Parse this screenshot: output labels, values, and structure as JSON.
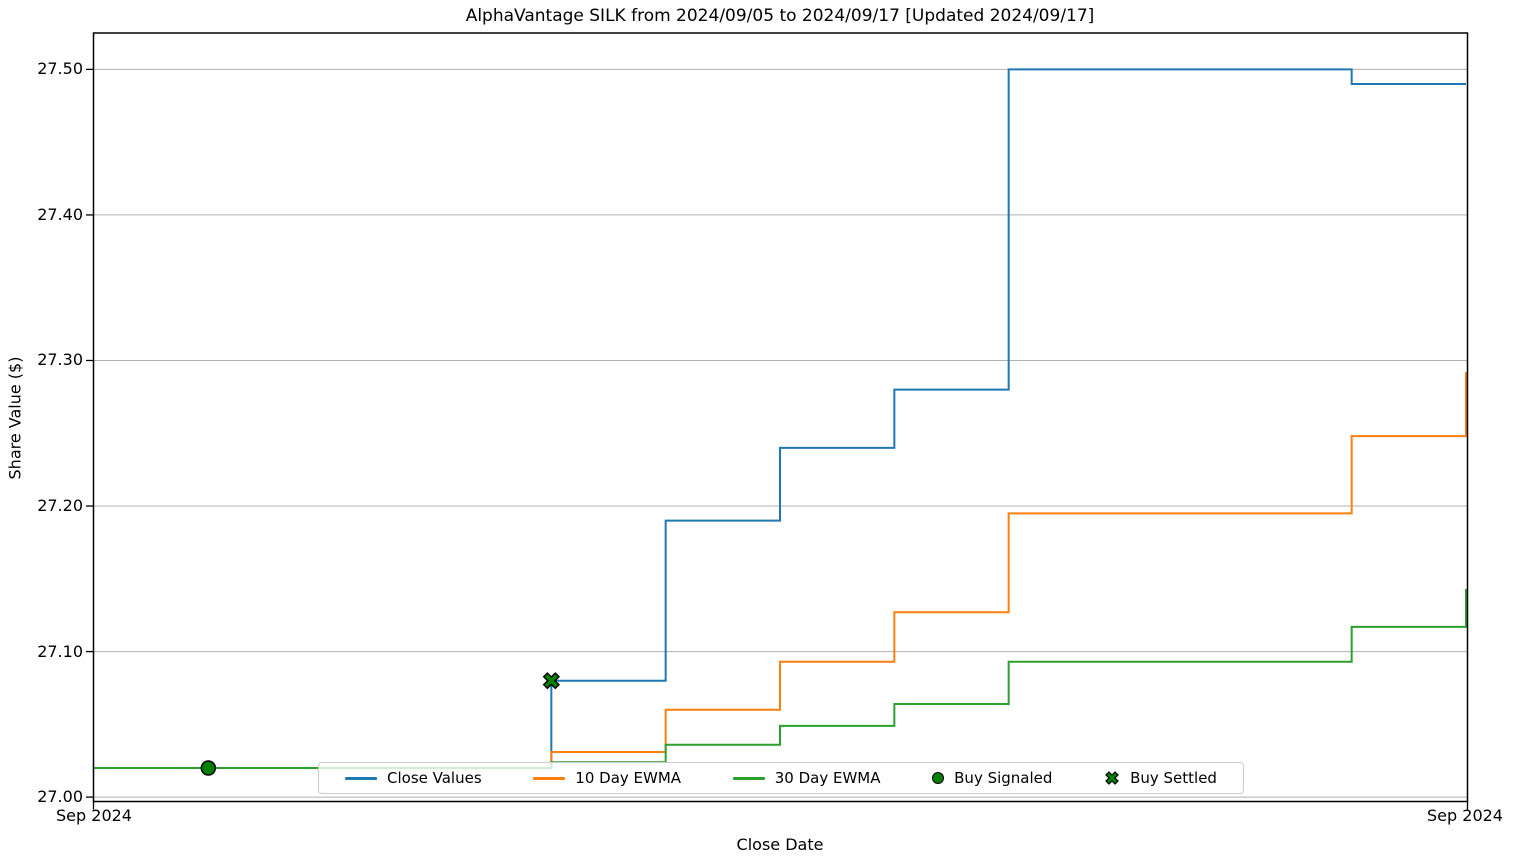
{
  "chart_data": {
    "type": "line",
    "drawstyle": "steps-post",
    "title": "AlphaVantage SILK from 2024/09/05 to 2024/09/17 [Updated 2024/09/17]",
    "xlabel": "Close Date",
    "ylabel": "Share Value ($)",
    "grid": "horizontal-only",
    "legend_position": "lower-center-horizontal",
    "x_dates": [
      "2024-09-05",
      "2024-09-06",
      "2024-09-09",
      "2024-09-10",
      "2024-09-11",
      "2024-09-12",
      "2024-09-13",
      "2024-09-16",
      "2024-09-17"
    ],
    "x_day_offsets": [
      0,
      1,
      4,
      5,
      6,
      7,
      8,
      11,
      12
    ],
    "x_axis_span_days": 12,
    "series": [
      {
        "name": "Close Values",
        "color": "#1f77b4",
        "values": [
          27.02,
          27.02,
          27.08,
          27.19,
          27.24,
          27.28,
          27.5,
          27.49,
          27.49
        ]
      },
      {
        "name": "10 Day EWMA",
        "color": "#ff7f0e",
        "values": [
          27.02,
          27.02,
          27.031,
          27.06,
          27.093,
          27.127,
          27.195,
          27.248,
          27.292
        ]
      },
      {
        "name": "30 Day EWMA",
        "color": "#2ca02c",
        "values": [
          27.02,
          27.02,
          27.024,
          27.036,
          27.049,
          27.064,
          27.093,
          27.117,
          27.143
        ]
      }
    ],
    "markers": [
      {
        "name": "Buy Signaled",
        "shape": "circle",
        "color": "#008000",
        "edge_color": "#000000",
        "date": "2024-09-06",
        "x_index": 1,
        "value": 27.02
      },
      {
        "name": "Buy Settled",
        "shape": "x",
        "color": "#008000",
        "edge_color": "#000000",
        "date": "2024-09-09",
        "x_index": 2,
        "value": 27.08
      }
    ],
    "legend": [
      {
        "label": "Close Values",
        "glyph": "line",
        "color": "#1f77b4"
      },
      {
        "label": "10 Day EWMA",
        "glyph": "line",
        "color": "#ff7f0e"
      },
      {
        "label": "30 Day EWMA",
        "glyph": "line",
        "color": "#2ca02c"
      },
      {
        "label": "Buy Signaled",
        "glyph": "circle",
        "color": "#008000"
      },
      {
        "label": "Buy Settled",
        "glyph": "x",
        "color": "#008000"
      }
    ],
    "yticks": [
      "27.00",
      "27.10",
      "27.20",
      "27.30",
      "27.40",
      "27.50"
    ],
    "ytick_values": [
      27.0,
      27.1,
      27.2,
      27.3,
      27.4,
      27.5
    ],
    "ylim": [
      26.997,
      27.525
    ],
    "xticks": [
      "Sep 2024",
      "Sep 2024"
    ],
    "colors": {
      "grid": "#b0b0b0",
      "spine": "#000000",
      "background": "#ffffff"
    }
  }
}
